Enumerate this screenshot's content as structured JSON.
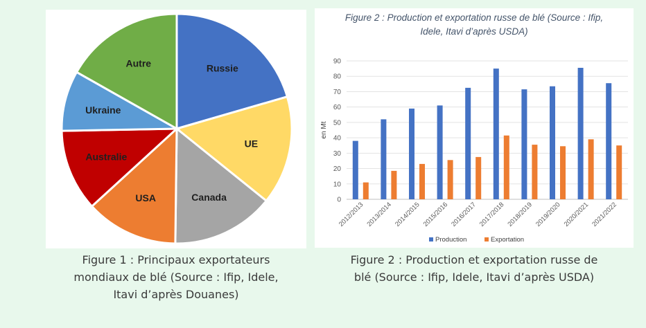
{
  "figure1": {
    "caption_lines": [
      "Figure 1 : Principaux exportateurs",
      "mondiaux de blé (Source : Ifip, Idele,",
      "Itavi d’après Douanes)"
    ]
  },
  "figure2": {
    "title_lines": [
      "Figure 2 : Production et exportation russe de blé (Source : Ifip,",
      "Idele, Itavi d’après USDA)"
    ],
    "caption_lines": [
      "Figure 2 : Production et exportation russe de",
      "blé (Source : Ifip, Idele, Itavi d’après USDA)"
    ]
  },
  "chart_data": [
    {
      "type": "pie",
      "categories": [
        "Russie",
        "UE",
        "Canada",
        "USA",
        "Australie",
        "Ukraine",
        "Autre"
      ],
      "values": [
        20.5,
        15.3,
        14.4,
        13.0,
        11.5,
        8.5,
        16.8
      ],
      "colors": [
        "#4472c4",
        "#ffd966",
        "#a5a5a5",
        "#ed7d31",
        "#c00000",
        "#5b9bd5",
        "#70ad47"
      ],
      "label_colors": [
        "#1f1f1f",
        "#1f1f1f",
        "#1f1f1f",
        "#1f1f1f",
        "#1f1f1f",
        "#1f1f1f",
        "#1f1f1f"
      ]
    },
    {
      "type": "bar",
      "title": "Figure 2 : Production et exportation russe de blé (Source : Ifip, Idele, Itavi d’après USDA)",
      "categories": [
        "2012/2013",
        "2013/2014",
        "2014/2015",
        "2015/2016",
        "2016/2017",
        "2017/2018",
        "2018/2019",
        "2019/2020",
        "2020/2021",
        "2021/2022"
      ],
      "series": [
        {
          "name": "Production",
          "color": "#4472c4",
          "values": [
            38,
            52,
            59,
            61,
            72.5,
            85,
            71.5,
            73.5,
            85.5,
            75.5
          ]
        },
        {
          "name": "Exportation",
          "color": "#ed7d31",
          "values": [
            11,
            18.5,
            23,
            25.5,
            27.5,
            41.5,
            35.5,
            34.5,
            39,
            35
          ]
        }
      ],
      "xlabel": "",
      "ylabel": "en Mt",
      "ylim": [
        0,
        90
      ],
      "yticks": [
        0,
        10,
        20,
        30,
        40,
        50,
        60,
        70,
        80,
        90
      ],
      "grid": true,
      "legend": "bottom"
    }
  ]
}
